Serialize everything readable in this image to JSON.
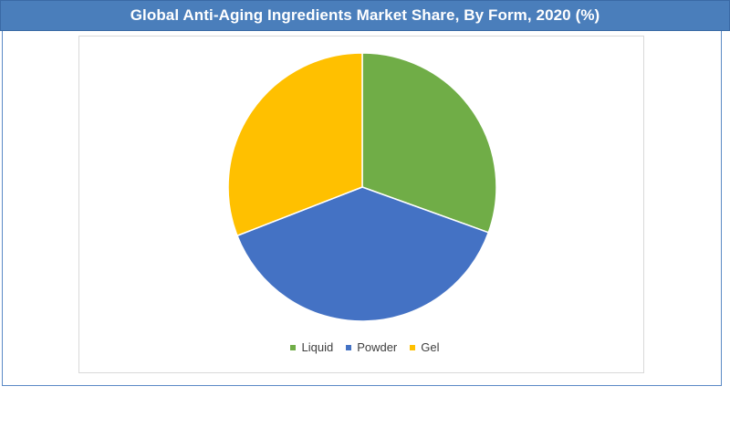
{
  "title": "Global Anti-Aging Ingredients Market Share, By Form, 2020 (%)",
  "chart_data": {
    "type": "pie",
    "title": "Global Anti-Aging Ingredients Market Share, By Form, 2020 (%)",
    "slices": [
      {
        "label": "Liquid",
        "value": 30.5,
        "color": "#70ad47"
      },
      {
        "label": "Powder",
        "value": 38.6,
        "color": "#4472c4"
      },
      {
        "label": "Gel",
        "value": 30.9,
        "color": "#ffc000"
      }
    ],
    "start_angle_deg": 0,
    "direction": "clockwise",
    "legend_position": "bottom",
    "colors": {
      "title_bar": "#4a7ebb",
      "frame_border": "#5b8ac6",
      "slice_border": "#ffffff"
    }
  },
  "legend": {
    "items": [
      {
        "label": "Liquid",
        "color": "#70ad47"
      },
      {
        "label": "Powder",
        "color": "#4472c4"
      },
      {
        "label": "Gel",
        "color": "#ffc000"
      }
    ]
  }
}
